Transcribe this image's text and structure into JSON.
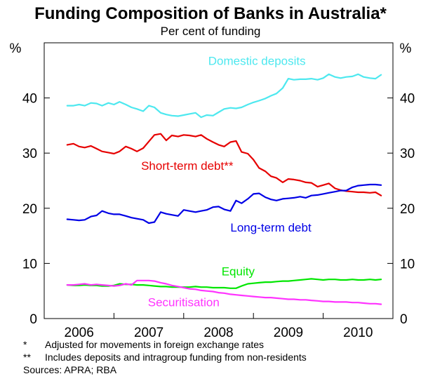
{
  "chart_data": {
    "type": "line",
    "title": "Funding Composition of Banks in Australia*",
    "subtitle": "Per cent of funding",
    "ylabel_left": "%",
    "ylabel_right": "%",
    "ylim": [
      0,
      50
    ],
    "yticks": [
      0,
      10,
      20,
      30,
      40
    ],
    "xlim": [
      2005.5,
      2010.5
    ],
    "xticks": [
      2006,
      2007,
      2008,
      2009,
      2010
    ],
    "xtick_labels": [
      "2006",
      "2007",
      "2008",
      "2009",
      "2010"
    ],
    "grid": false,
    "series": [
      {
        "name": "Domestic deposits",
        "color": "#4de8ef",
        "points": [
          [
            2005.83,
            38.6
          ],
          [
            2005.92,
            38.6
          ],
          [
            2006.0,
            38.8
          ],
          [
            2006.08,
            38.6
          ],
          [
            2006.17,
            39.1
          ],
          [
            2006.25,
            39.0
          ],
          [
            2006.33,
            38.6
          ],
          [
            2006.42,
            39.1
          ],
          [
            2006.5,
            38.8
          ],
          [
            2006.58,
            39.3
          ],
          [
            2006.67,
            38.8
          ],
          [
            2006.75,
            38.3
          ],
          [
            2006.83,
            38.0
          ],
          [
            2006.92,
            37.6
          ],
          [
            2007.0,
            38.6
          ],
          [
            2007.08,
            38.3
          ],
          [
            2007.17,
            37.3
          ],
          [
            2007.25,
            37.0
          ],
          [
            2007.33,
            36.8
          ],
          [
            2007.42,
            36.7
          ],
          [
            2007.5,
            36.9
          ],
          [
            2007.58,
            37.1
          ],
          [
            2007.67,
            37.3
          ],
          [
            2007.75,
            36.5
          ],
          [
            2007.83,
            36.9
          ],
          [
            2007.92,
            36.8
          ],
          [
            2008.0,
            37.4
          ],
          [
            2008.08,
            38.0
          ],
          [
            2008.17,
            38.2
          ],
          [
            2008.25,
            38.1
          ],
          [
            2008.33,
            38.3
          ],
          [
            2008.42,
            38.8
          ],
          [
            2008.5,
            39.2
          ],
          [
            2008.58,
            39.5
          ],
          [
            2008.67,
            39.9
          ],
          [
            2008.75,
            40.4
          ],
          [
            2008.83,
            40.8
          ],
          [
            2008.92,
            41.8
          ],
          [
            2009.0,
            43.5
          ],
          [
            2009.08,
            43.3
          ],
          [
            2009.17,
            43.4
          ],
          [
            2009.25,
            43.4
          ],
          [
            2009.33,
            43.5
          ],
          [
            2009.42,
            43.3
          ],
          [
            2009.5,
            43.6
          ],
          [
            2009.58,
            44.3
          ],
          [
            2009.67,
            43.8
          ],
          [
            2009.75,
            43.6
          ],
          [
            2009.83,
            43.8
          ],
          [
            2009.92,
            43.9
          ],
          [
            2010.0,
            44.3
          ],
          [
            2010.08,
            43.8
          ],
          [
            2010.17,
            43.6
          ],
          [
            2010.25,
            43.5
          ],
          [
            2010.33,
            44.2
          ]
        ]
      },
      {
        "name": "Short-term debt**",
        "color": "#e60000",
        "points": [
          [
            2005.83,
            31.5
          ],
          [
            2005.92,
            31.7
          ],
          [
            2006.0,
            31.2
          ],
          [
            2006.08,
            31.0
          ],
          [
            2006.17,
            31.3
          ],
          [
            2006.25,
            30.8
          ],
          [
            2006.33,
            30.3
          ],
          [
            2006.42,
            30.1
          ],
          [
            2006.5,
            29.9
          ],
          [
            2006.58,
            30.3
          ],
          [
            2006.67,
            31.2
          ],
          [
            2006.75,
            30.8
          ],
          [
            2006.83,
            30.3
          ],
          [
            2006.92,
            30.9
          ],
          [
            2007.0,
            32.1
          ],
          [
            2007.08,
            33.3
          ],
          [
            2007.17,
            33.5
          ],
          [
            2007.25,
            32.3
          ],
          [
            2007.33,
            33.2
          ],
          [
            2007.42,
            33.0
          ],
          [
            2007.5,
            33.3
          ],
          [
            2007.58,
            33.2
          ],
          [
            2007.67,
            33.0
          ],
          [
            2007.75,
            33.3
          ],
          [
            2007.83,
            32.6
          ],
          [
            2007.92,
            32.0
          ],
          [
            2008.0,
            31.5
          ],
          [
            2008.08,
            31.2
          ],
          [
            2008.17,
            32.0
          ],
          [
            2008.25,
            32.2
          ],
          [
            2008.33,
            30.2
          ],
          [
            2008.42,
            29.9
          ],
          [
            2008.5,
            28.8
          ],
          [
            2008.58,
            27.3
          ],
          [
            2008.67,
            26.7
          ],
          [
            2008.75,
            25.8
          ],
          [
            2008.83,
            25.5
          ],
          [
            2008.92,
            24.7
          ],
          [
            2009.0,
            25.3
          ],
          [
            2009.08,
            25.2
          ],
          [
            2009.17,
            25.0
          ],
          [
            2009.25,
            24.7
          ],
          [
            2009.33,
            24.6
          ],
          [
            2009.42,
            23.9
          ],
          [
            2009.5,
            24.2
          ],
          [
            2009.58,
            24.5
          ],
          [
            2009.67,
            23.6
          ],
          [
            2009.75,
            23.3
          ],
          [
            2009.83,
            23.1
          ],
          [
            2009.92,
            23.0
          ],
          [
            2010.0,
            22.9
          ],
          [
            2010.08,
            22.9
          ],
          [
            2010.17,
            22.8
          ],
          [
            2010.25,
            22.9
          ],
          [
            2010.33,
            22.3
          ]
        ]
      },
      {
        "name": "Long-term debt",
        "color": "#0000e6",
        "points": [
          [
            2005.83,
            18.0
          ],
          [
            2005.92,
            17.9
          ],
          [
            2006.0,
            17.8
          ],
          [
            2006.08,
            17.9
          ],
          [
            2006.17,
            18.5
          ],
          [
            2006.25,
            18.7
          ],
          [
            2006.33,
            19.5
          ],
          [
            2006.42,
            19.1
          ],
          [
            2006.5,
            18.9
          ],
          [
            2006.58,
            18.9
          ],
          [
            2006.67,
            18.6
          ],
          [
            2006.75,
            18.3
          ],
          [
            2006.83,
            18.1
          ],
          [
            2006.92,
            17.9
          ],
          [
            2007.0,
            17.3
          ],
          [
            2007.08,
            17.5
          ],
          [
            2007.17,
            19.3
          ],
          [
            2007.25,
            19.0
          ],
          [
            2007.33,
            18.8
          ],
          [
            2007.42,
            18.6
          ],
          [
            2007.5,
            19.7
          ],
          [
            2007.58,
            19.5
          ],
          [
            2007.67,
            19.3
          ],
          [
            2007.75,
            19.5
          ],
          [
            2007.83,
            19.7
          ],
          [
            2007.92,
            20.2
          ],
          [
            2008.0,
            20.3
          ],
          [
            2008.08,
            19.8
          ],
          [
            2008.17,
            19.5
          ],
          [
            2008.25,
            21.4
          ],
          [
            2008.33,
            20.9
          ],
          [
            2008.42,
            21.7
          ],
          [
            2008.5,
            22.6
          ],
          [
            2008.58,
            22.7
          ],
          [
            2008.67,
            22.0
          ],
          [
            2008.75,
            21.6
          ],
          [
            2008.83,
            21.4
          ],
          [
            2008.92,
            21.7
          ],
          [
            2009.0,
            21.8
          ],
          [
            2009.08,
            21.9
          ],
          [
            2009.17,
            22.1
          ],
          [
            2009.25,
            21.9
          ],
          [
            2009.33,
            22.3
          ],
          [
            2009.42,
            22.4
          ],
          [
            2009.5,
            22.6
          ],
          [
            2009.58,
            22.8
          ],
          [
            2009.67,
            23.0
          ],
          [
            2009.75,
            23.2
          ],
          [
            2009.83,
            23.2
          ],
          [
            2009.92,
            23.8
          ],
          [
            2010.0,
            24.1
          ],
          [
            2010.08,
            24.2
          ],
          [
            2010.17,
            24.3
          ],
          [
            2010.25,
            24.3
          ],
          [
            2010.33,
            24.2
          ]
        ]
      },
      {
        "name": "Equity",
        "color": "#00e600",
        "points": [
          [
            2005.83,
            6.1
          ],
          [
            2005.92,
            6.0
          ],
          [
            2006.0,
            6.0
          ],
          [
            2006.08,
            6.1
          ],
          [
            2006.17,
            6.0
          ],
          [
            2006.25,
            6.0
          ],
          [
            2006.33,
            5.9
          ],
          [
            2006.42,
            5.9
          ],
          [
            2006.5,
            6.0
          ],
          [
            2006.58,
            6.3
          ],
          [
            2006.67,
            6.2
          ],
          [
            2006.75,
            6.2
          ],
          [
            2006.83,
            6.1
          ],
          [
            2006.92,
            6.1
          ],
          [
            2007.0,
            6.0
          ],
          [
            2007.08,
            5.9
          ],
          [
            2007.17,
            5.8
          ],
          [
            2007.25,
            5.8
          ],
          [
            2007.33,
            5.7
          ],
          [
            2007.42,
            5.7
          ],
          [
            2007.5,
            5.7
          ],
          [
            2007.58,
            5.7
          ],
          [
            2007.67,
            5.8
          ],
          [
            2007.75,
            5.7
          ],
          [
            2007.83,
            5.7
          ],
          [
            2007.92,
            5.6
          ],
          [
            2008.0,
            5.6
          ],
          [
            2008.08,
            5.6
          ],
          [
            2008.17,
            5.5
          ],
          [
            2008.25,
            5.5
          ],
          [
            2008.33,
            5.9
          ],
          [
            2008.42,
            6.3
          ],
          [
            2008.5,
            6.4
          ],
          [
            2008.58,
            6.5
          ],
          [
            2008.67,
            6.6
          ],
          [
            2008.75,
            6.6
          ],
          [
            2008.83,
            6.7
          ],
          [
            2008.92,
            6.8
          ],
          [
            2009.0,
            6.8
          ],
          [
            2009.08,
            6.9
          ],
          [
            2009.17,
            7.0
          ],
          [
            2009.25,
            7.1
          ],
          [
            2009.33,
            7.2
          ],
          [
            2009.42,
            7.1
          ],
          [
            2009.5,
            7.0
          ],
          [
            2009.58,
            7.1
          ],
          [
            2009.67,
            7.1
          ],
          [
            2009.75,
            7.0
          ],
          [
            2009.83,
            7.0
          ],
          [
            2009.92,
            7.1
          ],
          [
            2010.0,
            7.0
          ],
          [
            2010.08,
            7.0
          ],
          [
            2010.17,
            7.1
          ],
          [
            2010.25,
            7.0
          ],
          [
            2010.33,
            7.1
          ]
        ]
      },
      {
        "name": "Securitisation",
        "color": "#ff33ff",
        "points": [
          [
            2005.83,
            6.1
          ],
          [
            2005.92,
            6.1
          ],
          [
            2006.0,
            6.2
          ],
          [
            2006.08,
            6.3
          ],
          [
            2006.17,
            6.1
          ],
          [
            2006.25,
            6.2
          ],
          [
            2006.33,
            6.1
          ],
          [
            2006.42,
            6.0
          ],
          [
            2006.5,
            5.9
          ],
          [
            2006.58,
            6.0
          ],
          [
            2006.67,
            6.3
          ],
          [
            2006.75,
            6.1
          ],
          [
            2006.83,
            6.9
          ],
          [
            2006.92,
            6.9
          ],
          [
            2007.0,
            6.9
          ],
          [
            2007.08,
            6.8
          ],
          [
            2007.17,
            6.5
          ],
          [
            2007.25,
            6.3
          ],
          [
            2007.33,
            6.0
          ],
          [
            2007.42,
            5.8
          ],
          [
            2007.5,
            5.6
          ],
          [
            2007.58,
            5.4
          ],
          [
            2007.67,
            5.3
          ],
          [
            2007.75,
            5.1
          ],
          [
            2007.83,
            5.0
          ],
          [
            2007.92,
            4.9
          ],
          [
            2008.0,
            4.7
          ],
          [
            2008.08,
            4.6
          ],
          [
            2008.17,
            4.4
          ],
          [
            2008.25,
            4.3
          ],
          [
            2008.33,
            4.2
          ],
          [
            2008.42,
            4.1
          ],
          [
            2008.5,
            4.0
          ],
          [
            2008.58,
            3.9
          ],
          [
            2008.67,
            3.8
          ],
          [
            2008.75,
            3.8
          ],
          [
            2008.83,
            3.7
          ],
          [
            2008.92,
            3.6
          ],
          [
            2009.0,
            3.5
          ],
          [
            2009.08,
            3.5
          ],
          [
            2009.17,
            3.4
          ],
          [
            2009.25,
            3.4
          ],
          [
            2009.33,
            3.3
          ],
          [
            2009.42,
            3.2
          ],
          [
            2009.5,
            3.1
          ],
          [
            2009.58,
            3.1
          ],
          [
            2009.67,
            3.0
          ],
          [
            2009.75,
            3.0
          ],
          [
            2009.83,
            3.0
          ],
          [
            2009.92,
            2.9
          ],
          [
            2010.0,
            2.9
          ],
          [
            2010.08,
            2.8
          ],
          [
            2010.17,
            2.7
          ],
          [
            2010.25,
            2.7
          ],
          [
            2010.33,
            2.6
          ]
        ]
      }
    ],
    "annotations": [
      {
        "series": "Domestic deposits",
        "text": "Domestic deposits",
        "color": "#4de8ef",
        "x": 2008.55,
        "y": 46.0
      },
      {
        "series": "Short-term debt**",
        "text": "Short-term debt**",
        "color": "#e60000",
        "x": 2007.55,
        "y": 27.0
      },
      {
        "series": "Long-term debt",
        "text": "Long-term debt",
        "color": "#0000e6",
        "x": 2008.75,
        "y": 15.8
      },
      {
        "series": "Equity",
        "text": "Equity",
        "color": "#00e600",
        "x": 2008.28,
        "y": 7.8
      },
      {
        "series": "Securitisation",
        "text": "Securitisation",
        "color": "#ff33ff",
        "x": 2007.5,
        "y": 2.2
      }
    ]
  },
  "footnotes": [
    {
      "mark": "*",
      "text": "Adjusted for movements in foreign exchange rates"
    },
    {
      "mark": "**",
      "text": "Includes deposits and intragroup funding from non-residents"
    }
  ],
  "sources": "Sources: APRA; RBA"
}
